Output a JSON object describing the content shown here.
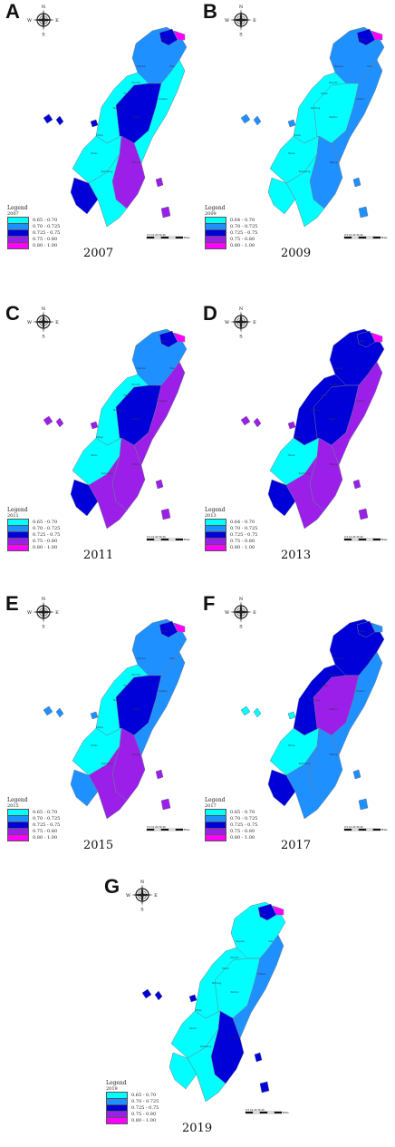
{
  "colors": {
    "c1": "#00ffff",
    "c2": "#1e90ff",
    "c3": "#0000d8",
    "c4": "#9b1fe8",
    "c5": "#ff00ff"
  },
  "icons": [
    "compass-rose-icon",
    "scale-bar-icon"
  ],
  "compass_labels": {
    "n": "N",
    "s": "S",
    "e": "E",
    "w": "W"
  },
  "legend_title": "Legend",
  "scale_text": "0 5 10 20 30 40",
  "scale_unit": "Miles",
  "panels": [
    {
      "label": "A",
      "year": "2007",
      "classes": [
        "0.65 - 0.70",
        "0.70 - 0.725",
        "0.725 - 0.75",
        "0.75 - 0.80",
        "0.80 - 1.00"
      ]
    },
    {
      "label": "B",
      "year": "2009",
      "classes": [
        "0.64 - 0.70",
        "0.70 - 0.725",
        "0.725 - 0.75",
        "0.75 - 0.80",
        "0.80 - 1.00"
      ]
    },
    {
      "label": "C",
      "year": "2011",
      "classes": [
        "0.65 - 0.70",
        "0.70 - 0.725",
        "0.725 - 0.75",
        "0.75 - 0.80",
        "0.80 - 1.00"
      ]
    },
    {
      "label": "D",
      "year": "2013",
      "classes": [
        "0.64 - 0.70",
        "0.70 - 0.725",
        "0.725 - 0.75",
        "0.75 - 0.80",
        "0.80 - 1.00"
      ]
    },
    {
      "label": "E",
      "year": "2015",
      "classes": [
        "0.65 - 0.70",
        "0.70 - 0.725",
        "0.725 - 0.75",
        "0.75 - 0.80",
        "0.80 - 1.00"
      ]
    },
    {
      "label": "F",
      "year": "2017",
      "classes": [
        "0.65 - 0.70",
        "0.70 - 0.725",
        "0.725 - 0.75",
        "0.75 - 0.80",
        "0.80 - 1.00"
      ]
    },
    {
      "label": "G",
      "year": "2019",
      "classes": [
        "0.65 - 0.70",
        "0.70 - 0.725",
        "0.725 - 0.75",
        "0.75 - 0.80",
        "0.80 - 1.00"
      ]
    }
  ],
  "fills": {
    "A": {
      "north": "c2",
      "taipei": "c3",
      "keelung": "c5",
      "west": "c1",
      "central": "c3",
      "east": "c1",
      "south": "c1",
      "southeast": "c4",
      "tip": "c1",
      "southwest": "c3",
      "penghu": "c3"
    },
    "B": {
      "north": "c2",
      "taipei": "c3",
      "keelung": "c5",
      "west": "c1",
      "central": "c1",
      "east": "c2",
      "south": "c1",
      "southeast": "c2",
      "tip": "c1",
      "southwest": "c1",
      "penghu": "c2"
    },
    "C": {
      "north": "c2",
      "taipei": "c3",
      "keelung": "c5",
      "west": "c1",
      "central": "c3",
      "east": "c4",
      "south": "c1",
      "southeast": "c4",
      "tip": "c4",
      "southwest": "c3",
      "penghu": "c4"
    },
    "D": {
      "north": "c3",
      "taipei": "c3",
      "keelung": "c5",
      "west": "c3",
      "central": "c3",
      "east": "c4",
      "south": "c1",
      "southeast": "c4",
      "tip": "c4",
      "southwest": "c3",
      "penghu": "c4"
    },
    "E": {
      "north": "c2",
      "taipei": "c3",
      "keelung": "c5",
      "west": "c1",
      "central": "c3",
      "east": "c2",
      "south": "c1",
      "southeast": "c4",
      "tip": "c4",
      "southwest": "c2",
      "penghu": "c2"
    },
    "F": {
      "north": "c3",
      "taipei": "c3",
      "keelung": "c2",
      "west": "c3",
      "central": "c4",
      "east": "c2",
      "south": "c1",
      "southeast": "c2",
      "tip": "c2",
      "southwest": "c3",
      "penghu": "c1"
    },
    "G": {
      "north": "c1",
      "taipei": "c3",
      "keelung": "c5",
      "west": "c1",
      "central": "c1",
      "east": "c2",
      "south": "c1",
      "southeast": "c3",
      "tip": "c1",
      "southwest": "c1",
      "penghu": "c3"
    }
  }
}
